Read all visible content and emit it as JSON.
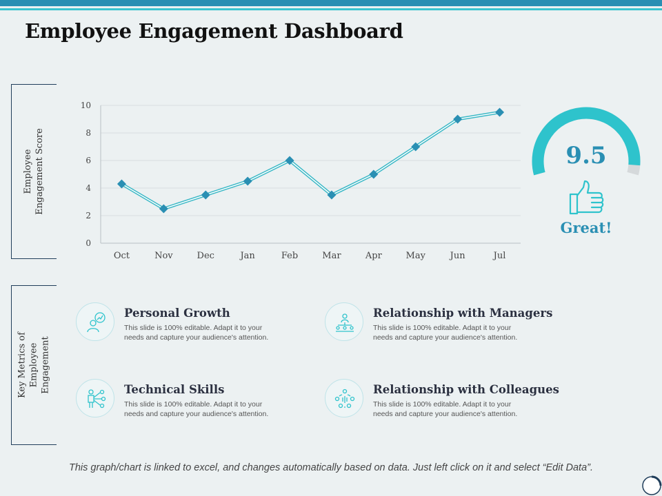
{
  "title": "Employee Engagement Dashboard",
  "side_labels": {
    "score": [
      "Employee",
      "Engagement Score"
    ],
    "metrics": [
      "Key Metrics of",
      "Employee",
      "Engagement"
    ]
  },
  "chart_data": {
    "type": "line",
    "categories": [
      "Oct",
      "Nov",
      "Dec",
      "Jan",
      "Feb",
      "Mar",
      "Apr",
      "May",
      "Jun",
      "Jul"
    ],
    "series": [
      {
        "name": "Employee Engagement Score",
        "values": [
          4.3,
          2.5,
          3.5,
          4.5,
          6.0,
          3.5,
          5.0,
          7.0,
          9.0,
          9.5
        ]
      }
    ],
    "ylim": [
      0,
      10
    ],
    "yticks": [
      0,
      2,
      4,
      6,
      8,
      10
    ],
    "ylabel": "Employee Engagement Score",
    "xlabel": "",
    "grid": true,
    "colors": {
      "line": "#3bb8c6",
      "marker": "#2a8fb3",
      "grid": "#d7dde0",
      "axis": "#b9c0c4"
    }
  },
  "gauge": {
    "value": "9.5",
    "fraction": 0.95,
    "label": "Great!",
    "colors": {
      "fill": "#2ec3cc",
      "track": "#d5d9db"
    }
  },
  "metrics": [
    {
      "title": "Personal Growth",
      "desc": "This slide is 100% editable. Adapt it to your needs and capture your audience's attention.",
      "icon": "personal-growth-icon"
    },
    {
      "title": "Relationship with Managers",
      "desc": "This slide is 100% editable. Adapt it to your needs and capture your audience's attention.",
      "icon": "managers-icon"
    },
    {
      "title": "Technical Skills",
      "desc": "This slide is 100% editable. Adapt it to your needs and capture your audience's attention.",
      "icon": "technical-skills-icon"
    },
    {
      "title": "Relationship with Colleagues",
      "desc": "This slide is 100% editable. Adapt it to your needs and capture your audience's attention.",
      "icon": "colleagues-icon"
    }
  ],
  "footnote": "This graph/chart is linked to excel, and changes automatically based on data. Just left click on it and select “Edit Data”."
}
